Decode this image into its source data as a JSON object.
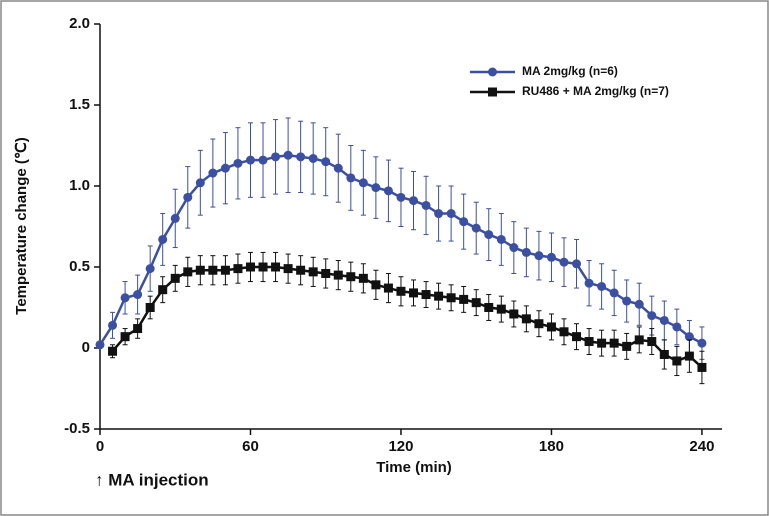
{
  "chart_data": {
    "type": "line",
    "xlabel": "Time (min)",
    "ylabel": "Temperature change (℃)",
    "annotation": "↑ MA injection",
    "x": [
      0,
      5,
      10,
      15,
      20,
      25,
      30,
      35,
      40,
      45,
      50,
      55,
      60,
      65,
      70,
      75,
      80,
      85,
      90,
      95,
      100,
      105,
      110,
      115,
      120,
      125,
      130,
      135,
      140,
      145,
      150,
      155,
      160,
      165,
      170,
      175,
      180,
      185,
      190,
      195,
      200,
      205,
      210,
      215,
      220,
      225,
      230,
      235,
      240
    ],
    "series": [
      {
        "name": "MA 2mg/kg (n=6)",
        "color": "#3b4fa3",
        "marker": "circle",
        "values": [
          0.02,
          0.14,
          0.31,
          0.33,
          0.49,
          0.67,
          0.8,
          0.93,
          1.02,
          1.08,
          1.11,
          1.14,
          1.16,
          1.16,
          1.18,
          1.19,
          1.18,
          1.17,
          1.15,
          1.11,
          1.05,
          1.02,
          0.99,
          0.97,
          0.93,
          0.91,
          0.88,
          0.83,
          0.83,
          0.78,
          0.74,
          0.7,
          0.67,
          0.62,
          0.59,
          0.57,
          0.56,
          0.53,
          0.52,
          0.4,
          0.38,
          0.34,
          0.29,
          0.27,
          0.2,
          0.17,
          0.13,
          0.07,
          0.03
        ],
        "errors": [
          0.02,
          0.08,
          0.1,
          0.12,
          0.14,
          0.16,
          0.18,
          0.19,
          0.2,
          0.21,
          0.22,
          0.22,
          0.23,
          0.23,
          0.23,
          0.23,
          0.22,
          0.22,
          0.21,
          0.21,
          0.2,
          0.2,
          0.19,
          0.19,
          0.18,
          0.18,
          0.18,
          0.17,
          0.17,
          0.17,
          0.16,
          0.16,
          0.16,
          0.16,
          0.15,
          0.15,
          0.15,
          0.15,
          0.15,
          0.14,
          0.14,
          0.14,
          0.13,
          0.13,
          0.12,
          0.12,
          0.11,
          0.1,
          0.1
        ]
      },
      {
        "name": "RU486 + MA 2mg/kg (n=7)",
        "color": "#111111",
        "marker": "square",
        "values": [
          null,
          -0.02,
          0.07,
          0.12,
          0.25,
          0.36,
          0.43,
          0.47,
          0.48,
          0.48,
          0.48,
          0.49,
          0.5,
          0.5,
          0.5,
          0.49,
          0.48,
          0.47,
          0.46,
          0.45,
          0.44,
          0.43,
          0.39,
          0.37,
          0.35,
          0.34,
          0.33,
          0.32,
          0.31,
          0.3,
          0.28,
          0.25,
          0.24,
          0.21,
          0.18,
          0.15,
          0.13,
          0.1,
          0.07,
          0.04,
          0.03,
          0.03,
          0.01,
          0.05,
          0.04,
          -0.04,
          -0.08,
          -0.05,
          -0.12
        ],
        "errors": [
          null,
          0.04,
          0.05,
          0.06,
          0.07,
          0.08,
          0.08,
          0.09,
          0.09,
          0.09,
          0.09,
          0.09,
          0.09,
          0.09,
          0.09,
          0.09,
          0.09,
          0.09,
          0.09,
          0.09,
          0.09,
          0.09,
          0.09,
          0.09,
          0.09,
          0.08,
          0.08,
          0.08,
          0.08,
          0.08,
          0.08,
          0.08,
          0.08,
          0.08,
          0.08,
          0.08,
          0.08,
          0.08,
          0.08,
          0.08,
          0.08,
          0.08,
          0.08,
          0.08,
          0.08,
          0.09,
          0.09,
          0.1,
          0.1
        ]
      }
    ],
    "xlim": [
      0,
      248
    ],
    "xticks": [
      0,
      60,
      120,
      180,
      240
    ],
    "ylim": [
      -0.5,
      2.0
    ],
    "yticks": [
      -0.5,
      0,
      0.5,
      {
        "value": 1.0,
        "label": "1.0"
      },
      1.5,
      {
        "value": 2.0,
        "label": "2.0"
      }
    ],
    "legend": "upper right"
  }
}
